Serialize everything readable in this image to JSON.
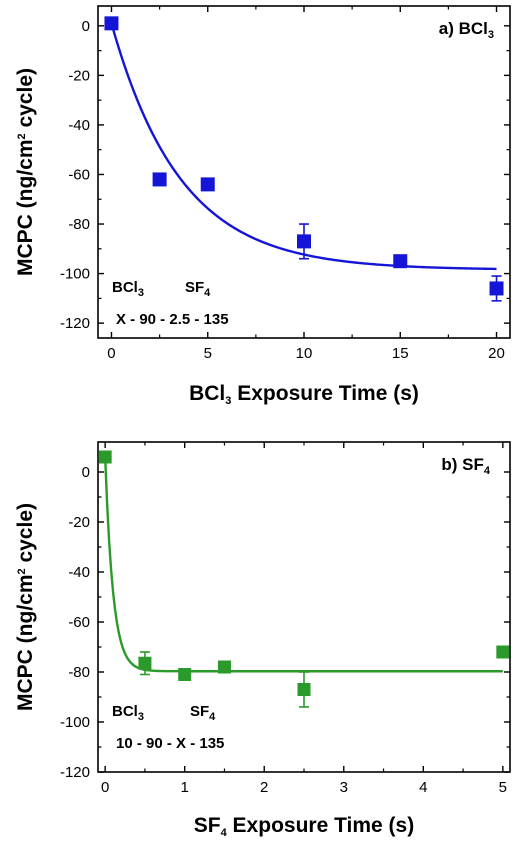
{
  "chart_data": [
    {
      "type": "scatter",
      "panel_label": {
        "prefix": "a) BCl",
        "sub": "3"
      },
      "xlabel": {
        "prefix": "BCl",
        "sub": "3",
        "suffix": " Exposure Time (s)"
      },
      "ylabel": {
        "prefix": "MCPC (ng/cm",
        "sup": "2",
        "suffix": " cycle)"
      },
      "xlim": [
        -0.7,
        20.7
      ],
      "ylim": [
        -126,
        8
      ],
      "xticks": [
        0,
        5,
        10,
        15,
        20
      ],
      "yticks": [
        0,
        -20,
        -40,
        -60,
        -80,
        -100,
        -120
      ],
      "color": "#1515d8",
      "series": [
        {
          "x": [
            0,
            2.5,
            5,
            10,
            15,
            20
          ],
          "y": [
            1,
            -62,
            -64,
            -87,
            -95,
            -106
          ],
          "yerr": [
            1,
            1.5,
            1.5,
            7,
            2,
            5
          ]
        }
      ],
      "fit": {
        "model": "exponential decay",
        "plateau": -98.5,
        "y0": 1,
        "tau": 3.6
      },
      "annotation": {
        "labels": [
          {
            "prefix": "BCl",
            "sub": "3"
          },
          {
            "prefix": "SF",
            "sub": "4"
          }
        ],
        "sequence": "X - 90 - 2.5 - 135"
      }
    },
    {
      "type": "scatter",
      "panel_label": {
        "prefix": "b) SF",
        "sub": "4"
      },
      "xlabel": {
        "prefix": "SF",
        "sub": "4",
        "suffix": " Exposure Time (s)"
      },
      "ylabel": {
        "prefix": "MCPC (ng/cm",
        "sup": "2",
        "suffix": " cycle)"
      },
      "xlim": [
        -0.09,
        5.09
      ],
      "ylim": [
        -120,
        12
      ],
      "xticks": [
        0,
        1,
        2,
        3,
        4,
        5
      ],
      "yticks": [
        0,
        -20,
        -40,
        -60,
        -80,
        -100,
        -120
      ],
      "color": "#2b9a2b",
      "series": [
        {
          "x": [
            0,
            0.5,
            1,
            1.5,
            2.5,
            5
          ],
          "y": [
            6,
            -76.5,
            -81,
            -78,
            -87,
            -72
          ],
          "yerr": [
            1,
            4.5,
            2,
            2,
            7,
            1.5
          ]
        }
      ],
      "fit": {
        "model": "exponential decay",
        "plateau": -79.7,
        "y0": 6,
        "tau": 0.1
      },
      "annotation": {
        "labels": [
          {
            "prefix": "BCl",
            "sub": "3"
          },
          {
            "prefix": "SF",
            "sub": "4"
          }
        ],
        "sequence": "10 - 90 - X - 135"
      }
    }
  ]
}
